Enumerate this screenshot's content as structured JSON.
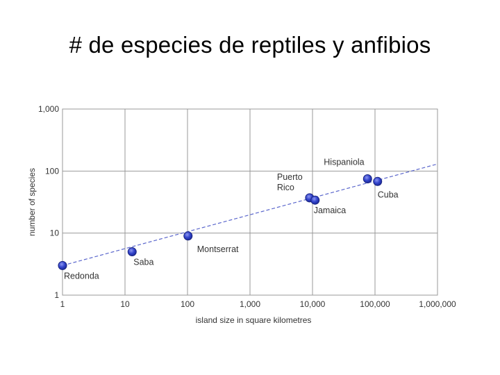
{
  "slide": {
    "title": "# de especies de reptiles y anfibios"
  },
  "chart_data": {
    "type": "scatter",
    "xlabel": "island size in square kilometres",
    "ylabel": "number of species",
    "x_scale": "log",
    "y_scale": "log",
    "xlim": [
      1,
      1000000
    ],
    "ylim": [
      1,
      1000
    ],
    "x_ticks": [
      1,
      10,
      100,
      1000,
      10000,
      100000,
      1000000
    ],
    "x_tick_labels": [
      "1",
      "10",
      "100",
      "1,000",
      "10,000",
      "100,000",
      "1,000,000"
    ],
    "y_ticks": [
      1,
      10,
      100,
      1000
    ],
    "y_tick_labels": [
      "1",
      "10",
      "100",
      "1,000"
    ],
    "grid": true,
    "points": [
      {
        "label": "Redonda",
        "x": 1,
        "y": 3
      },
      {
        "label": "Saba",
        "x": 13,
        "y": 5
      },
      {
        "label": "Montserrat",
        "x": 102,
        "y": 9
      },
      {
        "label": "Puerto Rico",
        "x": 9000,
        "y": 37
      },
      {
        "label": "Jamaica",
        "x": 11000,
        "y": 34
      },
      {
        "label": "Hispaniola",
        "x": 76000,
        "y": 75
      },
      {
        "label": "Cuba",
        "x": 110000,
        "y": 68
      }
    ],
    "trendline": {
      "style": "dashed",
      "from": {
        "x": 1,
        "y": 3
      },
      "to": {
        "x": 1000000,
        "y": 130
      }
    },
    "colors": {
      "point": "#3344cc",
      "trendline": "#5a66cc",
      "grid": "#999999"
    }
  }
}
